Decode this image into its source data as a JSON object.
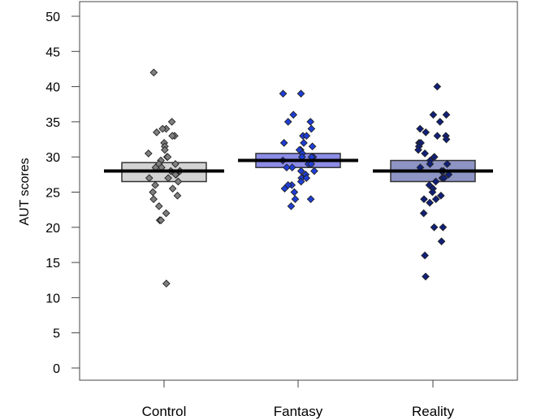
{
  "chart_data": {
    "type": "scatter",
    "title": "",
    "xlabel": "",
    "ylabel": "AUT scores",
    "ylim": [
      -1,
      52
    ],
    "yticks": [
      0,
      5,
      10,
      15,
      20,
      25,
      30,
      35,
      40,
      45,
      50
    ],
    "categories": [
      "Control",
      "Fantasy",
      "Reality"
    ],
    "grid": false,
    "legend": "none",
    "series": [
      {
        "category": "Control",
        "color": "#7f7f7f",
        "box_fill": "#d3d3d3",
        "mean": 28.0,
        "ci": [
          26.5,
          29.2
        ],
        "points": [
          42,
          35,
          34,
          34,
          33.5,
          33,
          33,
          32,
          31.5,
          31,
          30.5,
          30,
          30,
          29.5,
          29,
          29,
          28.5,
          28.5,
          28,
          28,
          27.5,
          27.5,
          27,
          27,
          26.5,
          26,
          25.5,
          25,
          24.5,
          24,
          23,
          22,
          21,
          21,
          12
        ]
      },
      {
        "category": "Fantasy",
        "color": "#1f3ed6",
        "box_fill": "#8c8ce8",
        "mean": 29.5,
        "ci": [
          28.5,
          30.5
        ],
        "points": [
          39,
          39,
          36,
          35,
          35,
          34,
          33,
          33,
          32,
          32,
          31.5,
          31,
          31,
          30.5,
          30,
          30,
          30,
          29.5,
          29,
          29,
          28.5,
          28.5,
          28,
          28,
          27.5,
          27,
          27,
          26.5,
          26,
          26,
          25.5,
          25,
          24,
          24,
          23
        ]
      },
      {
        "category": "Reality",
        "color": "#10207a",
        "box_fill": "#8e94c4",
        "mean": 28.0,
        "ci": [
          26.5,
          29.5
        ],
        "points": [
          40,
          36,
          36,
          35,
          34,
          33.5,
          33,
          33,
          32.5,
          32,
          32,
          31.5,
          31,
          30.5,
          30,
          30,
          29.5,
          29,
          29,
          28.5,
          28,
          28,
          27.5,
          27,
          27,
          26.5,
          26,
          25.5,
          25,
          24.5,
          24,
          24,
          23.5,
          22,
          20,
          20,
          18,
          16,
          13
        ]
      }
    ]
  }
}
